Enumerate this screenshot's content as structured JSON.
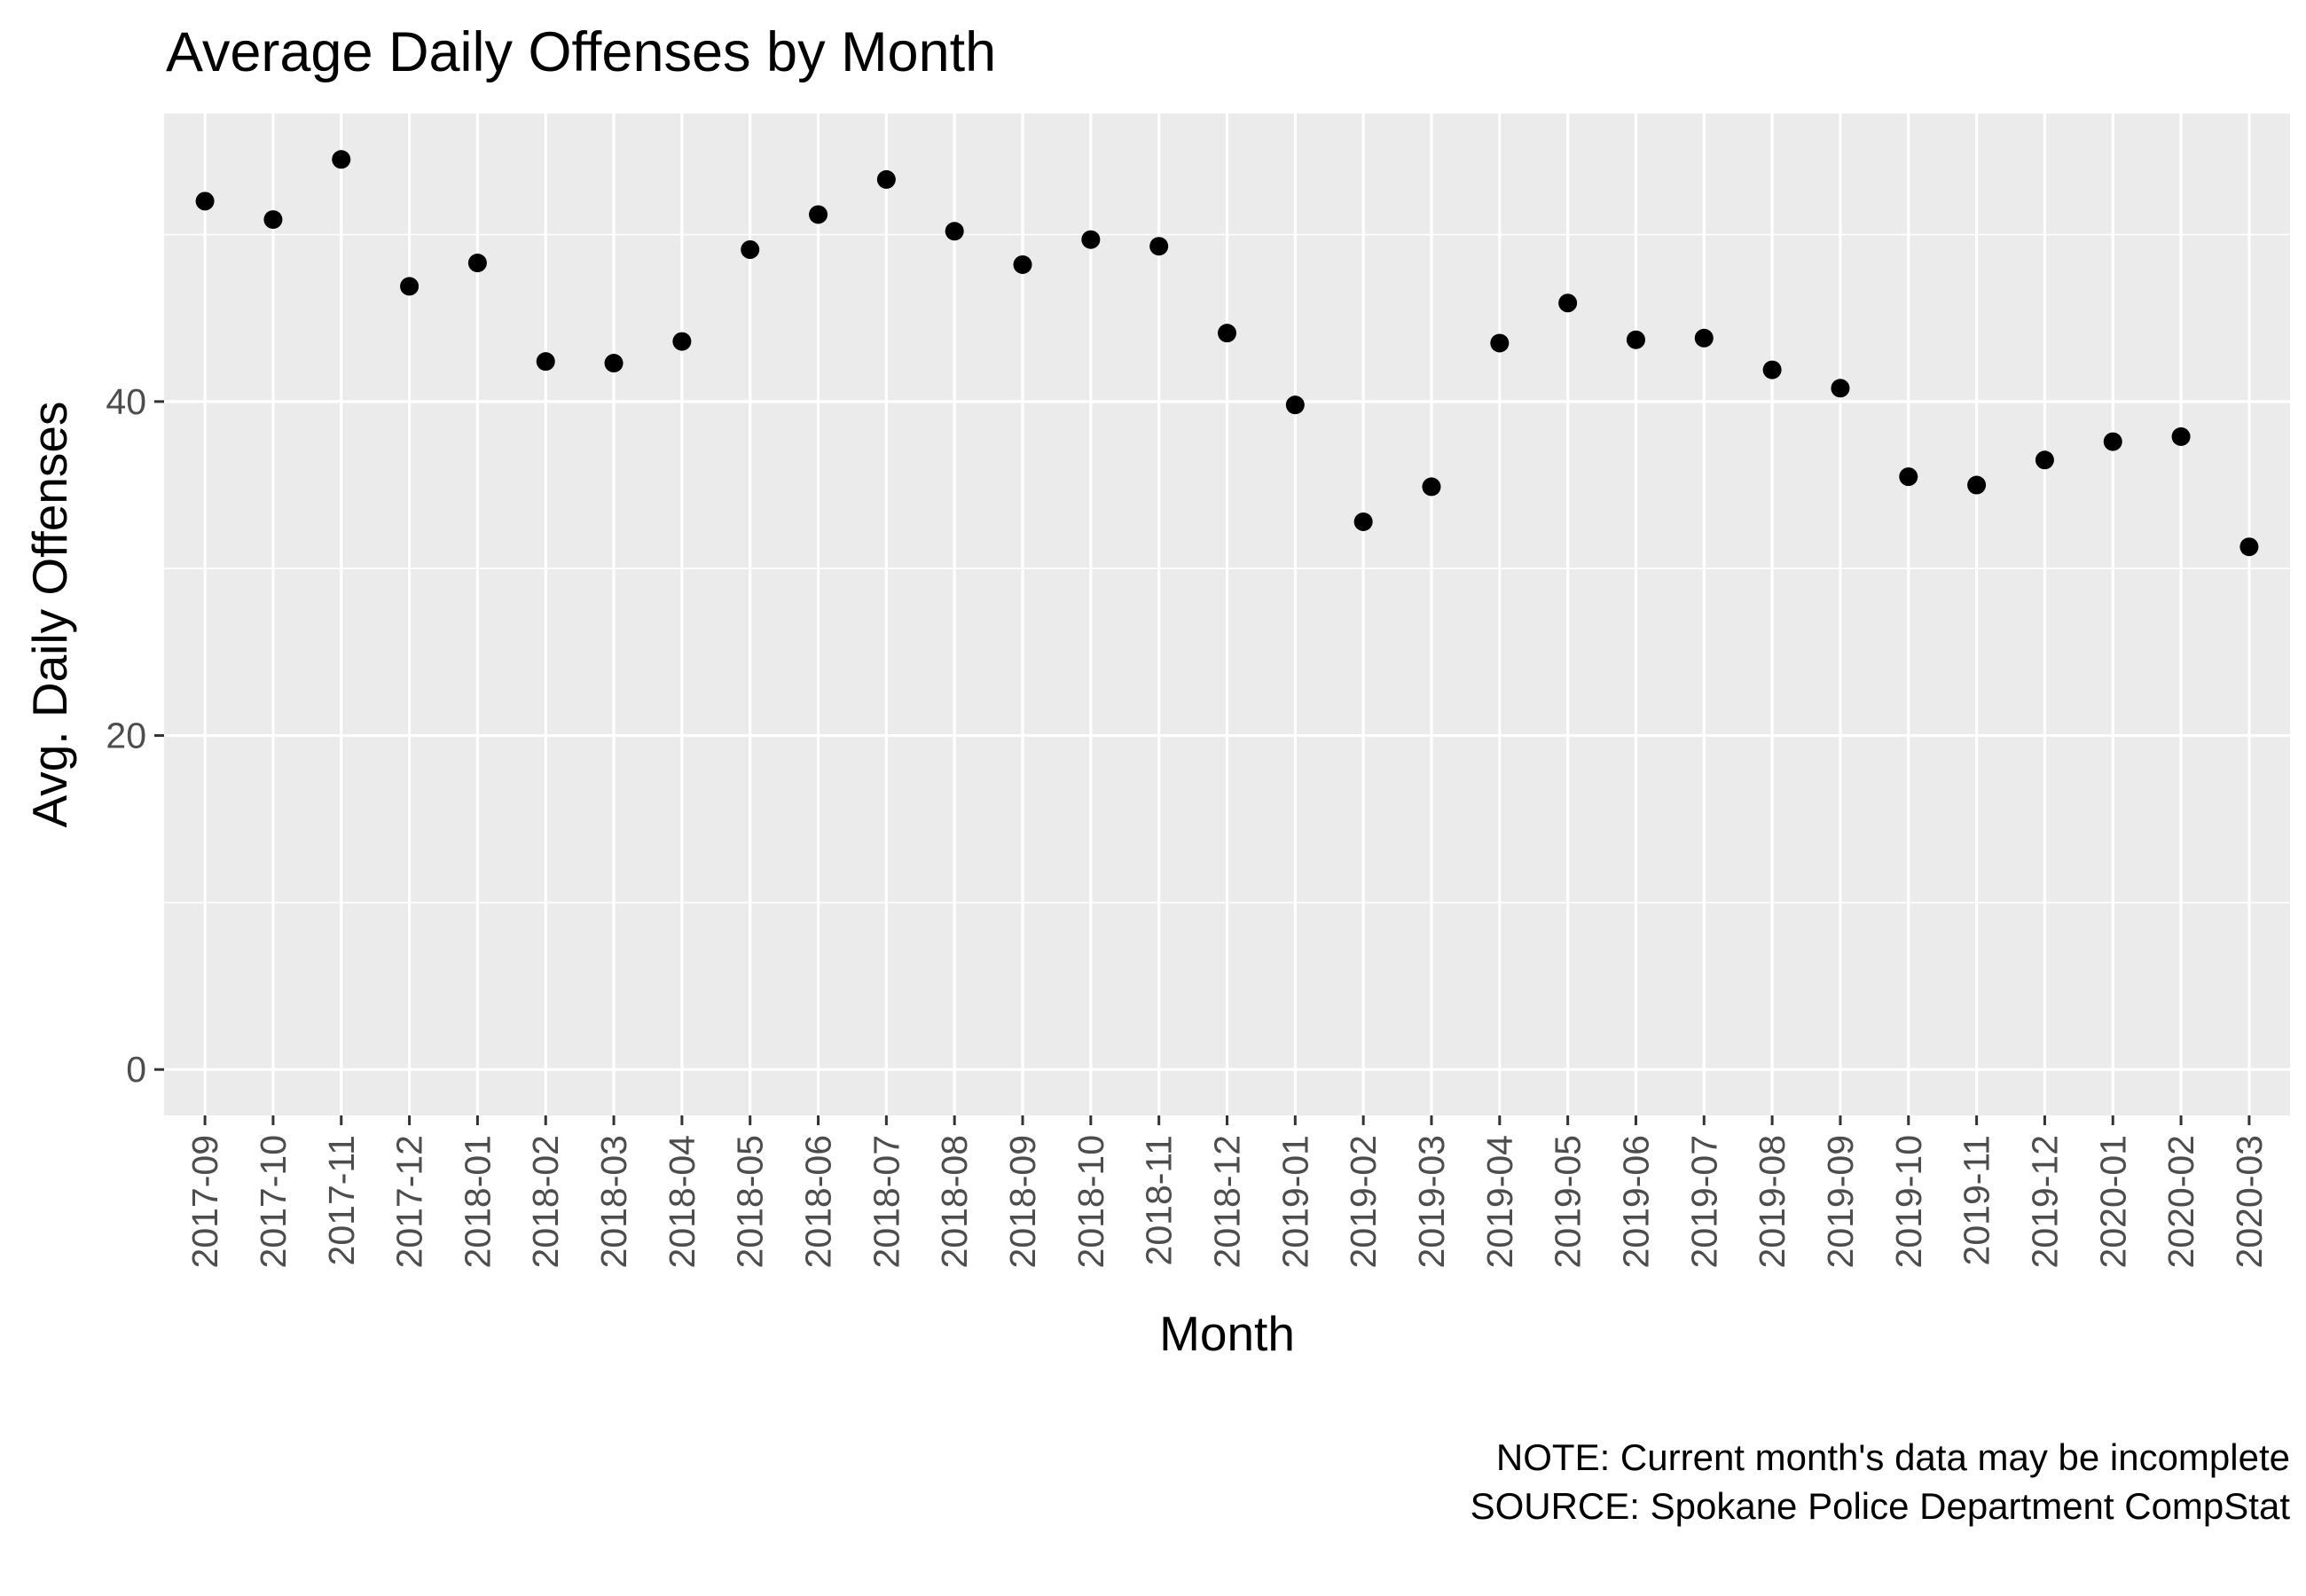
{
  "chart_data": {
    "type": "scatter",
    "title": "Average Daily Offenses by Month",
    "xlabel": "Month",
    "ylabel": "Avg. Daily Offenses",
    "categories": [
      "2017-09",
      "2017-10",
      "2017-11",
      "2017-12",
      "2018-01",
      "2018-02",
      "2018-03",
      "2018-04",
      "2018-05",
      "2018-06",
      "2018-07",
      "2018-08",
      "2018-09",
      "2018-10",
      "2018-11",
      "2018-12",
      "2019-01",
      "2019-02",
      "2019-03",
      "2019-04",
      "2019-05",
      "2019-06",
      "2019-07",
      "2019-08",
      "2019-09",
      "2019-10",
      "2019-11",
      "2019-12",
      "2020-01",
      "2020-02",
      "2020-03"
    ],
    "values": [
      52.0,
      50.9,
      54.5,
      46.9,
      48.3,
      42.4,
      42.3,
      43.6,
      49.1,
      51.2,
      53.3,
      50.2,
      48.2,
      49.7,
      49.3,
      44.1,
      39.8,
      32.8,
      34.9,
      43.5,
      45.9,
      43.7,
      43.8,
      41.9,
      40.8,
      35.5,
      35.0,
      36.5,
      37.6,
      37.9,
      31.3
    ],
    "y_ticks": [
      0,
      20,
      40
    ],
    "ylim": [
      -2.75,
      57.25
    ],
    "grid": true,
    "colors": {
      "panel": "#ebebeb",
      "grid": "#ffffff",
      "point": "#000000",
      "tick_text": "#4d4d4d"
    },
    "caption": [
      "NOTE: Current month's data may be incomplete",
      "SOURCE: Spokane Police Department CompStat"
    ]
  }
}
